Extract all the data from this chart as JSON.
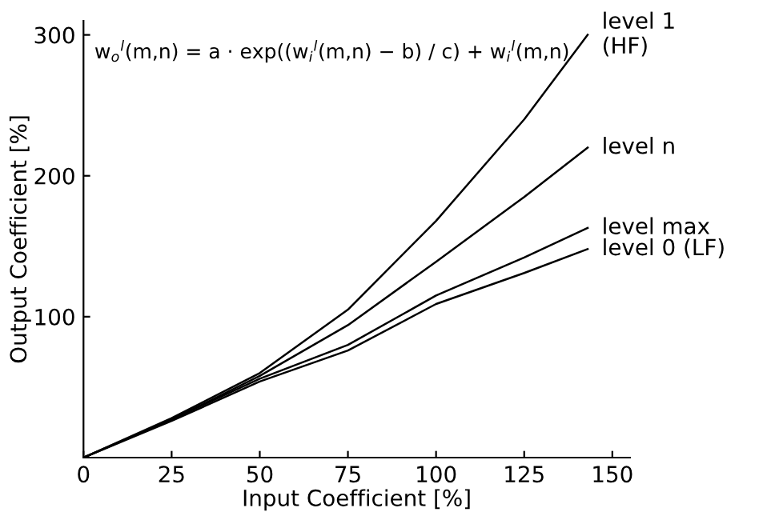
{
  "chart_data": {
    "type": "line",
    "xlabel": "Input Coefficient [%]",
    "ylabel": "Output Coefficient [%]",
    "annotations": [
      "w$_{o}$$^{l}$(m,n) = a · exp((w$_{i}$$^{l}$(m,n) − b) / c) + w$_{i}$$^{l}$(m,n)"
    ],
    "x": [
      0,
      25,
      50,
      75,
      100,
      125,
      143
    ],
    "series": [
      {
        "name": "level 1\n(HF)",
        "color": "#000000",
        "values": [
          0,
          28,
          60,
          105,
          168,
          240,
          300
        ]
      },
      {
        "name": "level n",
        "color": "#000000",
        "values": [
          0,
          27,
          58,
          94,
          139,
          185,
          220
        ]
      },
      {
        "name": "level max",
        "color": "#000000",
        "values": [
          0,
          27,
          56,
          80,
          115,
          142,
          163
        ]
      },
      {
        "name": "level 0 (LF)",
        "color": "#000000",
        "values": [
          0,
          26,
          54,
          76,
          109,
          131,
          148
        ]
      }
    ],
    "xlim": [
      0,
      155
    ],
    "ylim": [
      0,
      310
    ],
    "xticks": [
      0,
      25,
      50,
      75,
      100,
      125,
      150
    ],
    "yticks": [
      100,
      200,
      300
    ],
    "grid": false,
    "legend": false,
    "line_style": "solid",
    "marker": "none"
  }
}
